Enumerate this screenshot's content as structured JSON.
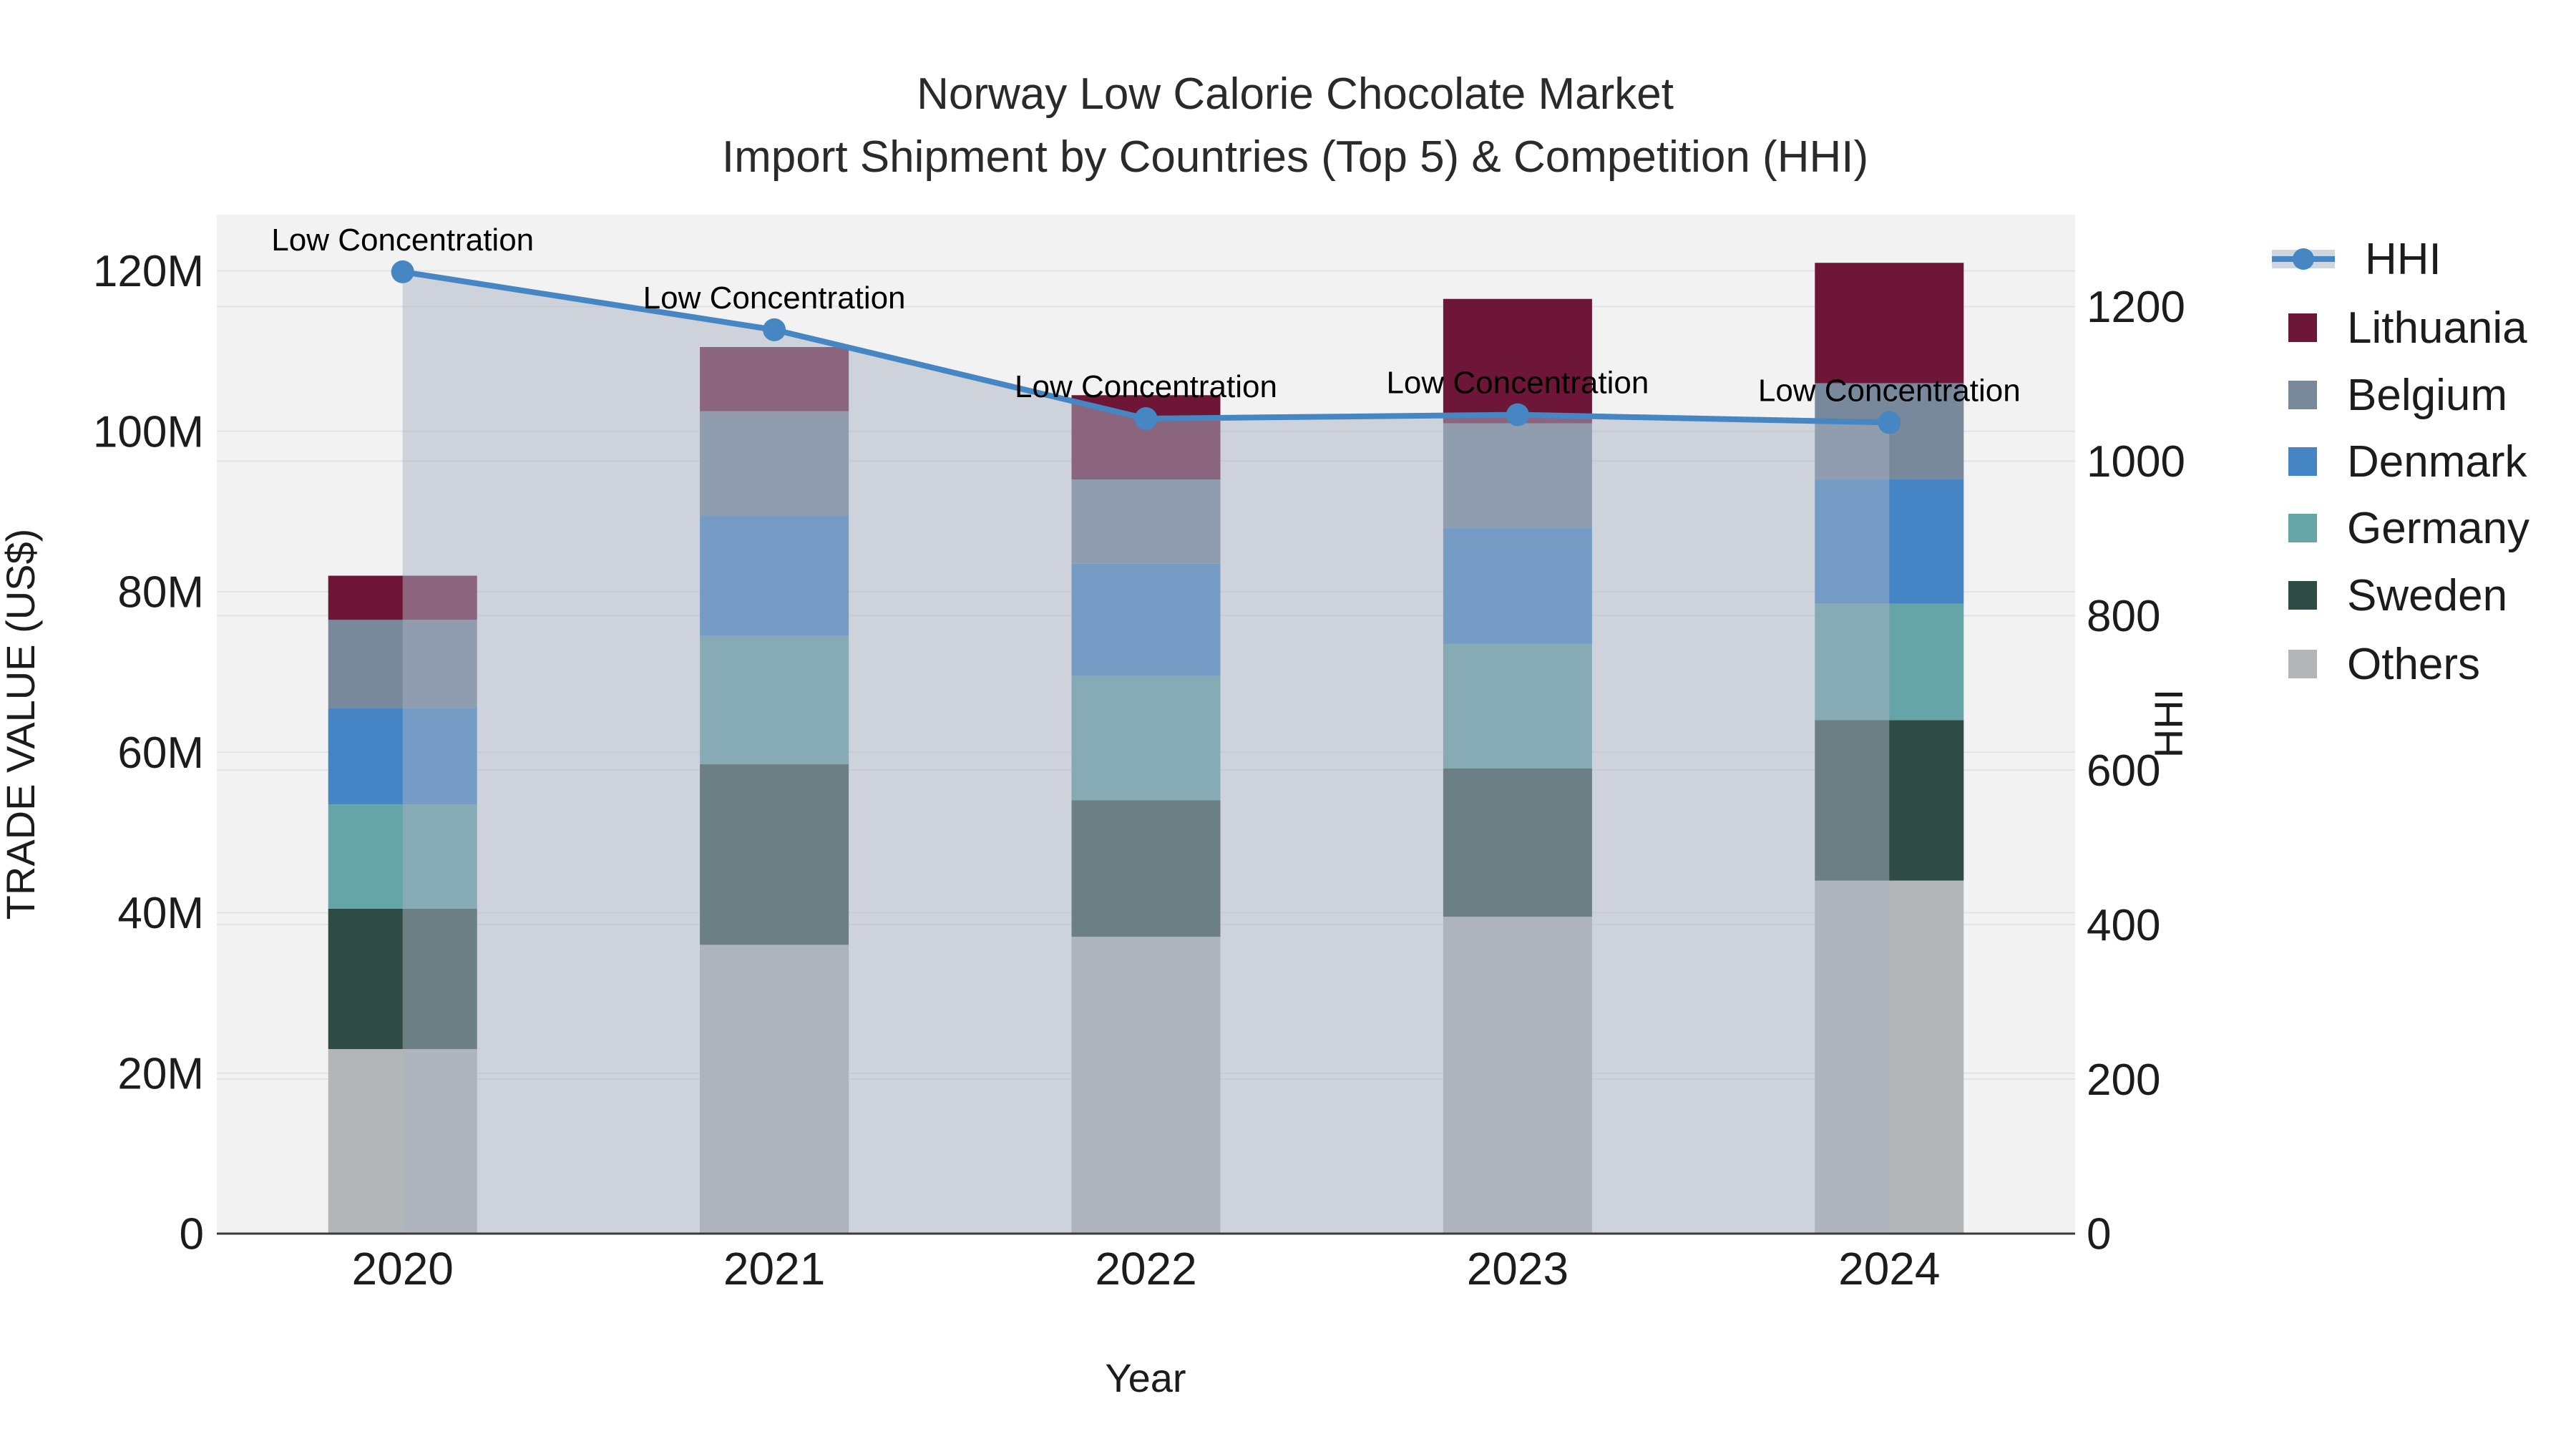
{
  "title": {
    "line1": "Norway Low Calorie Chocolate Market",
    "line2": "Import Shipment by Countries (Top 5) & Competition (HHI)"
  },
  "chart_data": {
    "type": "bar",
    "subtype": "stacked-bars-with-line-overlay",
    "categories": [
      "2020",
      "2021",
      "2022",
      "2023",
      "2024"
    ],
    "series": [
      {
        "name": "Others",
        "color": "#B3B6B9",
        "values": [
          23,
          36,
          37,
          39.5,
          44
        ]
      },
      {
        "name": "Sweden",
        "color": "#2E4C45",
        "values": [
          17.5,
          22.5,
          17,
          18.5,
          20
        ]
      },
      {
        "name": "Germany",
        "color": "#66A5A7",
        "values": [
          13,
          16,
          15.5,
          15.5,
          14.5
        ]
      },
      {
        "name": "Denmark",
        "color": "#4585C6",
        "values": [
          12,
          15,
          14,
          14.5,
          15.5
        ]
      },
      {
        "name": "Belgium",
        "color": "#78899B",
        "values": [
          11,
          13,
          10.5,
          13,
          12
        ]
      },
      {
        "name": "Lithuania",
        "color": "#6E1638",
        "values": [
          5.5,
          8,
          10.5,
          15.5,
          15
        ]
      }
    ],
    "bar_totals": [
      82,
      110.5,
      104.5,
      116.5,
      121
    ],
    "line_series": {
      "name": "HHI",
      "color": "#4686C2",
      "fill_color": "rgba(167,178,195,0.5)",
      "values": [
        1245,
        1170,
        1055,
        1060,
        1050
      ]
    },
    "annotation_text": "Low Concentration",
    "xlabel": "Year",
    "y_left": {
      "label": "TRADE VALUE (US$)",
      "tick_labels": [
        "0",
        "20M",
        "40M",
        "60M",
        "80M",
        "100M",
        "120M"
      ],
      "tick_values": [
        0,
        20,
        40,
        60,
        80,
        100,
        120
      ],
      "range": [
        0,
        127
      ]
    },
    "y_right": {
      "label": "HHI",
      "tick_labels": [
        "0",
        "200",
        "400",
        "600",
        "800",
        "1000",
        "1200"
      ],
      "tick_values": [
        0,
        200,
        400,
        600,
        800,
        1000,
        1200
      ],
      "range": [
        0,
        1319
      ]
    },
    "legend_order": [
      "HHI",
      "Lithuania",
      "Belgium",
      "Denmark",
      "Germany",
      "Sweden",
      "Others"
    ],
    "grid": true,
    "legend_position": "right",
    "plot_bg_color": "#F2F2F3",
    "gridline_color": "#E2E3E6",
    "axisline_color": "#3A3A3A",
    "text_color": "#1c1c1c"
  }
}
